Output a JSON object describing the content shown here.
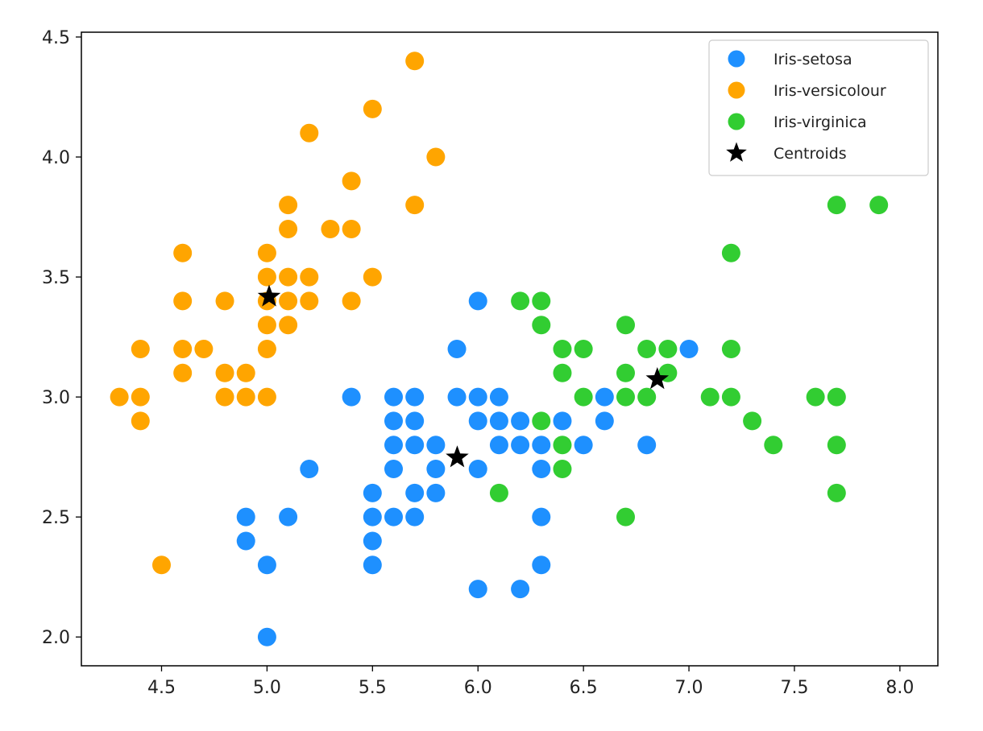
{
  "chart_data": {
    "type": "scatter",
    "title": "",
    "xlabel": "",
    "ylabel": "",
    "xlim": [
      4.12,
      8.18
    ],
    "ylim": [
      1.88,
      4.52
    ],
    "x_ticks": [
      "4.5",
      "5.0",
      "5.5",
      "6.0",
      "6.5",
      "7.0",
      "7.5",
      "8.0"
    ],
    "y_ticks": [
      "2.0",
      "2.5",
      "3.0",
      "3.5",
      "4.0",
      "4.5"
    ],
    "grid": false,
    "legend_position": "top-right",
    "series": [
      {
        "name": "Iris-setosa",
        "color": "#1E90FF",
        "marker": "circle",
        "points": [
          [
            6.0,
            3.4
          ],
          [
            5.9,
            3.2
          ],
          [
            7.0,
            3.2
          ],
          [
            5.4,
            3.0
          ],
          [
            5.6,
            3.0
          ],
          [
            5.7,
            3.0
          ],
          [
            5.9,
            3.0
          ],
          [
            6.0,
            3.0
          ],
          [
            6.1,
            3.0
          ],
          [
            6.6,
            3.0
          ],
          [
            5.6,
            2.9
          ],
          [
            5.7,
            2.9
          ],
          [
            6.0,
            2.9
          ],
          [
            6.1,
            2.9
          ],
          [
            6.2,
            2.9
          ],
          [
            6.4,
            2.9
          ],
          [
            6.6,
            2.9
          ],
          [
            5.6,
            2.8
          ],
          [
            5.7,
            2.8
          ],
          [
            5.8,
            2.8
          ],
          [
            6.1,
            2.8
          ],
          [
            6.2,
            2.8
          ],
          [
            6.3,
            2.8
          ],
          [
            6.5,
            2.8
          ],
          [
            6.8,
            2.8
          ],
          [
            5.2,
            2.7
          ],
          [
            5.6,
            2.7
          ],
          [
            5.8,
            2.7
          ],
          [
            6.0,
            2.7
          ],
          [
            6.3,
            2.7
          ],
          [
            5.5,
            2.6
          ],
          [
            5.7,
            2.6
          ],
          [
            5.8,
            2.6
          ],
          [
            4.9,
            2.5
          ],
          [
            5.1,
            2.5
          ],
          [
            5.5,
            2.5
          ],
          [
            5.6,
            2.5
          ],
          [
            5.7,
            2.5
          ],
          [
            6.3,
            2.5
          ],
          [
            4.9,
            2.4
          ],
          [
            5.5,
            2.4
          ],
          [
            5.0,
            2.3
          ],
          [
            5.5,
            2.3
          ],
          [
            6.3,
            2.3
          ],
          [
            6.0,
            2.2
          ],
          [
            6.2,
            2.2
          ],
          [
            5.0,
            2.0
          ]
        ]
      },
      {
        "name": "Iris-versicolour",
        "color": "#FFA500",
        "marker": "circle",
        "points": [
          [
            5.7,
            4.4
          ],
          [
            5.5,
            4.2
          ],
          [
            5.2,
            4.1
          ],
          [
            5.8,
            4.0
          ],
          [
            5.4,
            3.9
          ],
          [
            5.1,
            3.8
          ],
          [
            5.7,
            3.8
          ],
          [
            5.1,
            3.7
          ],
          [
            5.3,
            3.7
          ],
          [
            5.4,
            3.7
          ],
          [
            4.6,
            3.6
          ],
          [
            5.0,
            3.6
          ],
          [
            5.0,
            3.5
          ],
          [
            5.1,
            3.5
          ],
          [
            5.2,
            3.5
          ],
          [
            5.5,
            3.5
          ],
          [
            4.6,
            3.4
          ],
          [
            4.8,
            3.4
          ],
          [
            5.0,
            3.4
          ],
          [
            5.1,
            3.4
          ],
          [
            5.2,
            3.4
          ],
          [
            5.4,
            3.4
          ],
          [
            5.0,
            3.3
          ],
          [
            5.1,
            3.3
          ],
          [
            4.4,
            3.2
          ],
          [
            4.6,
            3.2
          ],
          [
            4.7,
            3.2
          ],
          [
            5.0,
            3.2
          ],
          [
            4.6,
            3.1
          ],
          [
            4.8,
            3.1
          ],
          [
            4.9,
            3.1
          ],
          [
            4.3,
            3.0
          ],
          [
            4.4,
            3.0
          ],
          [
            4.8,
            3.0
          ],
          [
            4.9,
            3.0
          ],
          [
            5.0,
            3.0
          ],
          [
            4.4,
            2.9
          ],
          [
            4.5,
            2.3
          ]
        ]
      },
      {
        "name": "Iris-virginica",
        "color": "#32CD32",
        "marker": "circle",
        "points": [
          [
            7.7,
            3.8
          ],
          [
            7.9,
            3.8
          ],
          [
            7.2,
            3.6
          ],
          [
            6.2,
            3.4
          ],
          [
            6.3,
            3.4
          ],
          [
            6.3,
            3.3
          ],
          [
            6.7,
            3.3
          ],
          [
            6.4,
            3.2
          ],
          [
            6.5,
            3.2
          ],
          [
            6.8,
            3.2
          ],
          [
            6.9,
            3.2
          ],
          [
            7.2,
            3.2
          ],
          [
            6.4,
            3.1
          ],
          [
            6.7,
            3.1
          ],
          [
            6.9,
            3.1
          ],
          [
            6.5,
            3.0
          ],
          [
            6.7,
            3.0
          ],
          [
            6.8,
            3.0
          ],
          [
            7.1,
            3.0
          ],
          [
            7.2,
            3.0
          ],
          [
            7.6,
            3.0
          ],
          [
            7.7,
            3.0
          ],
          [
            6.3,
            2.9
          ],
          [
            7.3,
            2.9
          ],
          [
            6.4,
            2.8
          ],
          [
            7.4,
            2.8
          ],
          [
            7.7,
            2.8
          ],
          [
            6.4,
            2.7
          ],
          [
            6.1,
            2.6
          ],
          [
            7.7,
            2.6
          ],
          [
            6.7,
            2.5
          ]
        ]
      },
      {
        "name": "Centroids",
        "color": "#000000",
        "marker": "star",
        "points": [
          [
            5.01,
            3.418
          ],
          [
            5.9016,
            2.748
          ],
          [
            6.85,
            3.074
          ]
        ]
      }
    ]
  }
}
